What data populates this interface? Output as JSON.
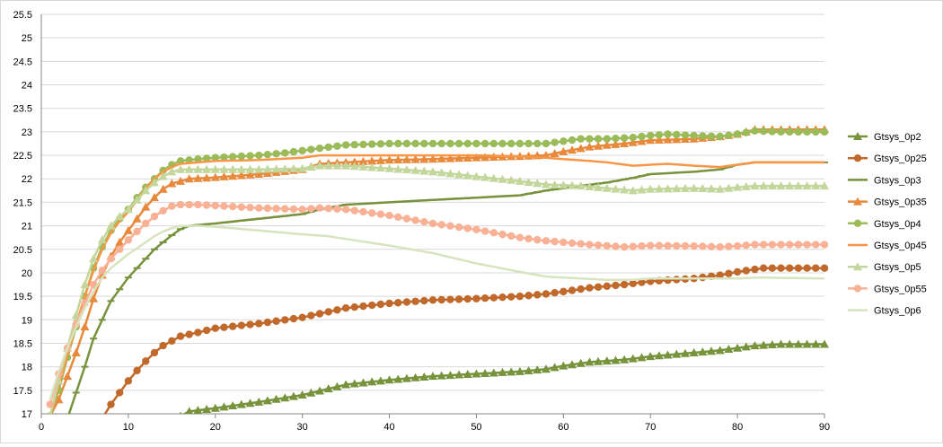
{
  "chart_data": {
    "type": "line",
    "title": "",
    "xlabel": "",
    "ylabel": "",
    "xlim": [
      0,
      90
    ],
    "ylim": [
      17,
      25.5
    ],
    "x_ticks": [
      "0",
      "10",
      "20",
      "30",
      "40",
      "50",
      "60",
      "70",
      "80",
      "90"
    ],
    "y_ticks": [
      "17",
      "17.5",
      "18",
      "18.5",
      "19",
      "19.5",
      "20",
      "20.5",
      "21",
      "21.5",
      "22",
      "22.5",
      "23",
      "23.5",
      "24",
      "24.5",
      "25",
      "25.5"
    ],
    "grid": "horizontal",
    "legend_position": "right",
    "series": [
      {
        "name": "Gtsys_0p2",
        "color": "#77933c",
        "marker": "triangle",
        "points": [
          [
            16,
            16.95
          ],
          [
            17,
            17.05
          ],
          [
            20,
            17.12
          ],
          [
            25,
            17.25
          ],
          [
            30,
            17.4
          ],
          [
            35,
            17.62
          ],
          [
            40,
            17.72
          ],
          [
            45,
            17.8
          ],
          [
            50,
            17.85
          ],
          [
            55,
            17.9
          ],
          [
            58,
            17.95
          ],
          [
            60,
            18.02
          ],
          [
            63,
            18.1
          ],
          [
            67,
            18.15
          ],
          [
            70,
            18.22
          ],
          [
            75,
            18.3
          ],
          [
            78,
            18.35
          ],
          [
            82,
            18.45
          ],
          [
            85,
            18.48
          ],
          [
            90,
            18.48
          ]
        ]
      },
      {
        "name": "Gtsys_0p25",
        "color": "#c0692b",
        "marker": "circle",
        "points": [
          [
            7,
            16.9
          ],
          [
            8,
            17.2
          ],
          [
            9,
            17.45
          ],
          [
            10,
            17.7
          ],
          [
            11,
            17.92
          ],
          [
            12,
            18.12
          ],
          [
            13,
            18.3
          ],
          [
            14,
            18.45
          ],
          [
            15,
            18.55
          ],
          [
            16,
            18.65
          ],
          [
            18,
            18.73
          ],
          [
            20,
            18.82
          ],
          [
            25,
            18.92
          ],
          [
            30,
            19.05
          ],
          [
            35,
            19.25
          ],
          [
            40,
            19.35
          ],
          [
            45,
            19.42
          ],
          [
            50,
            19.45
          ],
          [
            55,
            19.5
          ],
          [
            58,
            19.55
          ],
          [
            60,
            19.6
          ],
          [
            63,
            19.68
          ],
          [
            67,
            19.75
          ],
          [
            70,
            19.82
          ],
          [
            75,
            19.88
          ],
          [
            78,
            19.95
          ],
          [
            80,
            20.02
          ],
          [
            83,
            20.1
          ],
          [
            90,
            20.1
          ]
        ]
      },
      {
        "name": "Gtsys_0p3",
        "color": "#77933c",
        "marker": "dash",
        "points": [
          [
            3,
            16.9
          ],
          [
            4,
            17.45
          ],
          [
            5,
            18.0
          ],
          [
            6,
            18.6
          ],
          [
            7,
            19.0
          ],
          [
            8,
            19.4
          ],
          [
            9,
            19.65
          ],
          [
            10,
            19.9
          ],
          [
            11,
            20.1
          ],
          [
            12,
            20.3
          ],
          [
            13,
            20.5
          ],
          [
            14,
            20.65
          ],
          [
            15,
            20.8
          ],
          [
            16,
            20.93
          ],
          [
            17,
            21.0
          ],
          [
            20,
            21.05
          ],
          [
            25,
            21.15
          ],
          [
            30,
            21.25
          ],
          [
            32,
            21.35
          ],
          [
            35,
            21.45
          ],
          [
            40,
            21.5
          ],
          [
            45,
            21.55
          ],
          [
            50,
            21.6
          ],
          [
            55,
            21.65
          ],
          [
            58,
            21.75
          ],
          [
            62,
            21.85
          ],
          [
            65,
            21.92
          ],
          [
            68,
            22.02
          ],
          [
            70,
            22.1
          ],
          [
            75,
            22.15
          ],
          [
            78,
            22.2
          ],
          [
            80,
            22.3
          ],
          [
            82,
            22.35
          ],
          [
            90,
            22.35
          ]
        ]
      },
      {
        "name": "Gtsys_0p35",
        "color": "#e8893c",
        "marker": "triangle",
        "points": [
          [
            1,
            16.95
          ],
          [
            2,
            17.3
          ],
          [
            3,
            17.8
          ],
          [
            4,
            18.3
          ],
          [
            5,
            18.85
          ],
          [
            6,
            19.45
          ],
          [
            7,
            19.95
          ],
          [
            8,
            20.35
          ],
          [
            9,
            20.65
          ],
          [
            10,
            20.9
          ],
          [
            11,
            21.15
          ],
          [
            12,
            21.4
          ],
          [
            13,
            21.6
          ],
          [
            14,
            21.78
          ],
          [
            15,
            21.9
          ],
          [
            17,
            22.0
          ],
          [
            20,
            22.03
          ],
          [
            25,
            22.1
          ],
          [
            30,
            22.2
          ],
          [
            32,
            22.32
          ],
          [
            35,
            22.35
          ],
          [
            40,
            22.4
          ],
          [
            45,
            22.42
          ],
          [
            50,
            22.45
          ],
          [
            55,
            22.48
          ],
          [
            58,
            22.5
          ],
          [
            60,
            22.58
          ],
          [
            63,
            22.68
          ],
          [
            67,
            22.75
          ],
          [
            70,
            22.82
          ],
          [
            75,
            22.85
          ],
          [
            78,
            22.9
          ],
          [
            80,
            22.95
          ],
          [
            82,
            23.05
          ],
          [
            85,
            23.05
          ],
          [
            90,
            23.05
          ]
        ]
      },
      {
        "name": "Gtsys_0p4",
        "color": "#9bbb59",
        "marker": "circle",
        "points": [
          [
            1,
            16.95
          ],
          [
            2,
            17.5
          ],
          [
            3,
            18.2
          ],
          [
            4,
            18.85
          ],
          [
            5,
            19.5
          ],
          [
            6,
            20.1
          ],
          [
            7,
            20.55
          ],
          [
            8,
            20.9
          ],
          [
            9,
            21.15
          ],
          [
            10,
            21.35
          ],
          [
            11,
            21.6
          ],
          [
            12,
            21.82
          ],
          [
            13,
            22.0
          ],
          [
            14,
            22.18
          ],
          [
            15,
            22.3
          ],
          [
            16,
            22.38
          ],
          [
            18,
            22.42
          ],
          [
            20,
            22.45
          ],
          [
            25,
            22.5
          ],
          [
            28,
            22.55
          ],
          [
            30,
            22.6
          ],
          [
            32,
            22.65
          ],
          [
            35,
            22.72
          ],
          [
            40,
            22.75
          ],
          [
            45,
            22.75
          ],
          [
            50,
            22.75
          ],
          [
            55,
            22.75
          ],
          [
            58,
            22.75
          ],
          [
            60,
            22.8
          ],
          [
            62,
            22.85
          ],
          [
            65,
            22.85
          ],
          [
            68,
            22.88
          ],
          [
            70,
            22.92
          ],
          [
            72,
            22.95
          ],
          [
            75,
            22.92
          ],
          [
            78,
            22.9
          ],
          [
            80,
            22.95
          ],
          [
            82,
            23.02
          ],
          [
            85,
            23.0
          ],
          [
            90,
            23.0
          ]
        ]
      },
      {
        "name": "Gtsys_0p45",
        "color": "#f79646",
        "marker": "none",
        "points": [
          [
            1,
            16.95
          ],
          [
            2,
            17.6
          ],
          [
            3,
            18.25
          ],
          [
            4,
            18.9
          ],
          [
            5,
            19.5
          ],
          [
            6,
            20.05
          ],
          [
            7,
            20.5
          ],
          [
            8,
            20.85
          ],
          [
            9,
            21.1
          ],
          [
            10,
            21.3
          ],
          [
            11,
            21.55
          ],
          [
            12,
            21.8
          ],
          [
            13,
            22.0
          ],
          [
            14,
            22.15
          ],
          [
            15,
            22.25
          ],
          [
            16,
            22.32
          ],
          [
            18,
            22.35
          ],
          [
            20,
            22.38
          ],
          [
            25,
            22.4
          ],
          [
            30,
            22.45
          ],
          [
            32,
            22.5
          ],
          [
            35,
            22.5
          ],
          [
            40,
            22.5
          ],
          [
            45,
            22.5
          ],
          [
            50,
            22.5
          ],
          [
            55,
            22.48
          ],
          [
            58,
            22.45
          ],
          [
            60,
            22.42
          ],
          [
            63,
            22.38
          ],
          [
            65,
            22.35
          ],
          [
            68,
            22.28
          ],
          [
            70,
            22.3
          ],
          [
            72,
            22.32
          ],
          [
            75,
            22.28
          ],
          [
            78,
            22.25
          ],
          [
            80,
            22.3
          ],
          [
            82,
            22.35
          ],
          [
            90,
            22.35
          ]
        ]
      },
      {
        "name": "Gtsys_0p5",
        "color": "#c3d69b",
        "marker": "triangle",
        "points": [
          [
            1,
            16.95
          ],
          [
            2,
            17.7
          ],
          [
            3,
            18.4
          ],
          [
            4,
            19.1
          ],
          [
            5,
            19.75
          ],
          [
            6,
            20.3
          ],
          [
            7,
            20.7
          ],
          [
            8,
            21.0
          ],
          [
            9,
            21.2
          ],
          [
            10,
            21.35
          ],
          [
            11,
            21.55
          ],
          [
            12,
            21.75
          ],
          [
            13,
            21.92
          ],
          [
            14,
            22.05
          ],
          [
            15,
            22.15
          ],
          [
            16,
            22.2
          ],
          [
            20,
            22.2
          ],
          [
            25,
            22.2
          ],
          [
            30,
            22.22
          ],
          [
            32,
            22.28
          ],
          [
            35,
            22.28
          ],
          [
            40,
            22.22
          ],
          [
            45,
            22.15
          ],
          [
            50,
            22.05
          ],
          [
            55,
            21.95
          ],
          [
            58,
            21.88
          ],
          [
            62,
            21.85
          ],
          [
            65,
            21.8
          ],
          [
            68,
            21.75
          ],
          [
            70,
            21.78
          ],
          [
            75,
            21.8
          ],
          [
            78,
            21.78
          ],
          [
            80,
            21.82
          ],
          [
            82,
            21.85
          ],
          [
            90,
            21.85
          ]
        ]
      },
      {
        "name": "Gtsys_0p55",
        "color": "#f9b196",
        "marker": "circle",
        "points": [
          [
            1,
            17.2
          ],
          [
            2,
            17.85
          ],
          [
            3,
            18.4
          ],
          [
            4,
            18.9
          ],
          [
            5,
            19.35
          ],
          [
            6,
            19.75
          ],
          [
            7,
            20.05
          ],
          [
            8,
            20.3
          ],
          [
            9,
            20.5
          ],
          [
            10,
            20.7
          ],
          [
            11,
            20.88
          ],
          [
            12,
            21.05
          ],
          [
            13,
            21.2
          ],
          [
            14,
            21.32
          ],
          [
            15,
            21.42
          ],
          [
            16,
            21.45
          ],
          [
            18,
            21.45
          ],
          [
            20,
            21.43
          ],
          [
            25,
            21.38
          ],
          [
            30,
            21.35
          ],
          [
            32,
            21.38
          ],
          [
            35,
            21.35
          ],
          [
            40,
            21.22
          ],
          [
            45,
            21.05
          ],
          [
            50,
            20.92
          ],
          [
            55,
            20.75
          ],
          [
            58,
            20.68
          ],
          [
            60,
            20.65
          ],
          [
            63,
            20.6
          ],
          [
            67,
            20.55
          ],
          [
            70,
            20.58
          ],
          [
            75,
            20.57
          ],
          [
            78,
            20.55
          ],
          [
            80,
            20.57
          ],
          [
            82,
            20.6
          ],
          [
            90,
            20.6
          ]
        ]
      },
      {
        "name": "Gtsys_0p6",
        "color": "#d7e4bd",
        "marker": "none",
        "points": [
          [
            1,
            17.3
          ],
          [
            2,
            17.9
          ],
          [
            3,
            18.4
          ],
          [
            4,
            18.85
          ],
          [
            5,
            19.25
          ],
          [
            6,
            19.6
          ],
          [
            7,
            19.9
          ],
          [
            8,
            20.1
          ],
          [
            9,
            20.25
          ],
          [
            10,
            20.4
          ],
          [
            11,
            20.52
          ],
          [
            12,
            20.65
          ],
          [
            13,
            20.78
          ],
          [
            14,
            20.88
          ],
          [
            15,
            20.95
          ],
          [
            16,
            21.0
          ],
          [
            18,
            21.0
          ],
          [
            20,
            20.98
          ],
          [
            25,
            20.9
          ],
          [
            30,
            20.82
          ],
          [
            33,
            20.78
          ],
          [
            35,
            20.72
          ],
          [
            40,
            20.58
          ],
          [
            45,
            20.42
          ],
          [
            50,
            20.2
          ],
          [
            55,
            20.02
          ],
          [
            58,
            19.92
          ],
          [
            62,
            19.88
          ],
          [
            65,
            19.85
          ],
          [
            68,
            19.85
          ],
          [
            70,
            19.88
          ],
          [
            75,
            19.88
          ],
          [
            78,
            19.88
          ],
          [
            80,
            19.88
          ],
          [
            82,
            19.9
          ],
          [
            90,
            19.88
          ]
        ]
      }
    ]
  }
}
